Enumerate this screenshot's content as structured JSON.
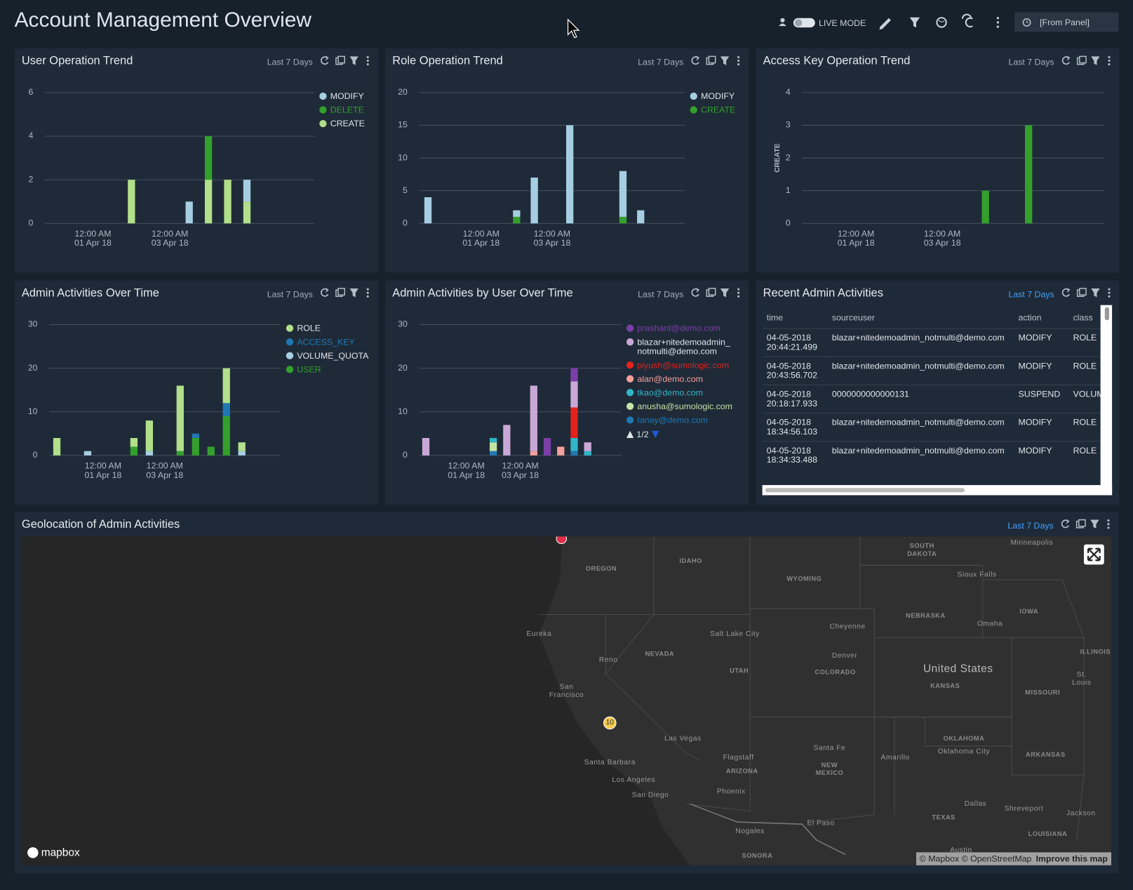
{
  "header": {
    "title": "Account Management Overview",
    "live_mode": "LIVE MODE",
    "time_range": "[From Panel]"
  },
  "panels": [
    {
      "title": "User Operation Trend",
      "range": "Last 7 Days",
      "chart": {
        "type": "bar",
        "stacked": true,
        "grid": true,
        "legend": "right",
        "categories": [
          null,
          null,
          "12:00 AM\n01 Apr 18",
          null,
          null,
          null,
          "12:00 AM\n03 Apr 18",
          null,
          null,
          null,
          null,
          null,
          null,
          null
        ],
        "series": [
          {
            "name": "MODIFY",
            "color": "#a6cee3",
            "values": [
              null,
              null,
              null,
              null,
              null,
              null,
              null,
              1,
              null,
              null,
              1,
              null,
              null,
              null
            ]
          },
          {
            "name": "DELETE",
            "color": "#33a02c",
            "values": [
              null,
              null,
              null,
              null,
              null,
              null,
              null,
              null,
              2,
              null,
              null,
              null,
              null,
              null
            ]
          },
          {
            "name": "CREATE",
            "color": "#b2df8a",
            "values": [
              null,
              null,
              null,
              null,
              2,
              null,
              null,
              null,
              2,
              2,
              1,
              null,
              null,
              null
            ]
          }
        ],
        "ylim": [
          0,
          6
        ],
        "yticks": [
          0,
          2,
          4,
          6
        ]
      }
    },
    {
      "title": "Role Operation Trend",
      "range": "Last 7 Days",
      "chart": {
        "type": "bar",
        "stacked": true,
        "grid": true,
        "legend": "right",
        "categories": [
          null,
          null,
          null,
          "12:00 AM\n01 Apr 18",
          null,
          null,
          null,
          "12:00 AM\n03 Apr 18",
          null,
          null,
          null,
          null,
          null,
          null,
          null
        ],
        "series": [
          {
            "name": "MODIFY",
            "color": "#a6cee3",
            "values": [
              4,
              null,
              null,
              null,
              null,
              1,
              7,
              null,
              15,
              null,
              null,
              7,
              2,
              null,
              null
            ]
          },
          {
            "name": "CREATE",
            "color": "#33a02c",
            "values": [
              null,
              null,
              null,
              null,
              null,
              1,
              null,
              null,
              null,
              null,
              null,
              1,
              null,
              null,
              null
            ]
          }
        ],
        "ylim": [
          0,
          20
        ],
        "yticks": [
          0,
          5,
          10,
          15,
          20
        ]
      }
    },
    {
      "title": "Access Key Operation Trend",
      "range": "Last 7 Days",
      "chart": {
        "type": "bar",
        "stacked": true,
        "grid": true,
        "y_label": "CREATE",
        "categories": [
          null,
          null,
          "12:00 AM\n01 Apr 18",
          null,
          null,
          null,
          "12:00 AM\n03 Apr 18",
          null,
          null,
          null,
          null,
          null,
          null,
          null
        ],
        "series": [
          {
            "name": "CREATE",
            "color": "#33a02c",
            "values": [
              null,
              null,
              null,
              null,
              null,
              null,
              null,
              null,
              1,
              null,
              3,
              null,
              null,
              null
            ]
          }
        ],
        "ylim": [
          0,
          4
        ],
        "yticks": [
          0,
          1,
          2,
          3,
          4
        ]
      }
    },
    {
      "title": "Admin Activities Over Time",
      "range": "Last 7 Days",
      "chart": {
        "type": "bar",
        "stacked": true,
        "grid": true,
        "legend": "right",
        "categories": [
          null,
          null,
          null,
          "12:00 AM\n01 Apr 18",
          null,
          null,
          null,
          "12:00 AM\n03 Apr 18",
          null,
          null,
          null,
          null,
          null,
          null,
          null
        ],
        "series": [
          {
            "name": "ROLE",
            "color": "#b2df8a",
            "values": [
              4,
              null,
              null,
              null,
              null,
              2,
              7,
              null,
              15,
              null,
              null,
              8,
              2,
              null,
              null
            ]
          },
          {
            "name": "ACCESS_KEY",
            "color": "#1f78b4",
            "values": [
              null,
              null,
              null,
              null,
              null,
              null,
              null,
              null,
              null,
              1,
              null,
              3,
              null,
              null,
              null
            ]
          },
          {
            "name": "VOLUME_QUOTA",
            "color": "#a6cee3",
            "values": [
              null,
              null,
              1,
              null,
              null,
              null,
              1,
              null,
              null,
              null,
              null,
              null,
              1,
              null,
              null
            ]
          },
          {
            "name": "USER",
            "color": "#33a02c",
            "values": [
              null,
              null,
              null,
              null,
              null,
              2,
              null,
              null,
              1,
              4,
              2,
              9,
              null,
              null,
              null
            ]
          }
        ],
        "ylim": [
          0,
          30
        ],
        "yticks": [
          0,
          10,
          20,
          30
        ]
      }
    },
    {
      "title": "Admin Activities by User Over Time",
      "range": "Last 7 Days",
      "chart": {
        "type": "bar",
        "stacked": true,
        "grid": true,
        "legend": "right",
        "legend_page": "1/2",
        "categories": [
          null,
          null,
          null,
          "12:00 AM\n01 Apr 18",
          null,
          null,
          null,
          "12:00 AM\n03 Apr 18",
          null,
          null,
          null,
          null,
          null,
          null,
          null
        ],
        "series": [
          {
            "name": "prashant@demo.com",
            "color": "#7b3fa8",
            "values": [
              null,
              null,
              null,
              null,
              null,
              null,
              null,
              null,
              null,
              4,
              null,
              3,
              null,
              null,
              null
            ]
          },
          {
            "name": "blazar+nitedemoadmin_notmulti@demo.com",
            "color": "#c9a8d8",
            "values": [
              4,
              null,
              null,
              null,
              null,
              null,
              7,
              null,
              15,
              null,
              null,
              6,
              2,
              null,
              null
            ]
          },
          {
            "name": "piyush@sumologic.com",
            "color": "#e3221b",
            "values": [
              null,
              null,
              null,
              null,
              null,
              null,
              null,
              null,
              null,
              null,
              null,
              7,
              null,
              null,
              null
            ]
          },
          {
            "name": "alan@demo.com",
            "color": "#f4a09a",
            "values": [
              null,
              null,
              null,
              null,
              null,
              null,
              null,
              null,
              1,
              null,
              2,
              null,
              null,
              null,
              null
            ]
          },
          {
            "name": "tkao@demo.com",
            "color": "#31b5c9",
            "values": [
              null,
              null,
              null,
              null,
              null,
              1,
              null,
              null,
              null,
              null,
              null,
              3,
              1,
              null,
              null
            ]
          },
          {
            "name": "anusha@sumologic.com",
            "color": "#c4e4a4",
            "values": [
              null,
              null,
              null,
              null,
              null,
              2,
              null,
              null,
              null,
              null,
              null,
              null,
              null,
              null,
              null
            ]
          },
          {
            "name": "tanay@demo.com",
            "color": "#1f78b4",
            "values": [
              null,
              null,
              null,
              null,
              null,
              1,
              null,
              null,
              null,
              null,
              null,
              1,
              null,
              null,
              null
            ]
          }
        ],
        "ylim": [
          0,
          30
        ],
        "yticks": [
          0,
          10,
          20,
          30
        ]
      }
    }
  ],
  "recent_admin_activities": {
    "title": "Recent Admin Activities",
    "range": "Last 7 Days",
    "columns": [
      "time",
      "sourceuser",
      "action",
      "class"
    ],
    "rows": [
      [
        "04-05-2018\n20:44:21.499",
        "blazar+nitedemoadmin_notmulti@demo.com",
        "MODIFY",
        "ROLE"
      ],
      [
        "04-05-2018\n20:43:56.702",
        "blazar+nitedemoadmin_notmulti@demo.com",
        "MODIFY",
        "ROLE"
      ],
      [
        "04-05-2018\n20:18:17.933",
        "0000000000000131",
        "SUSPEND",
        "VOLUME_QUOTA"
      ],
      [
        "04-05-2018\n18:34:56.103",
        "blazar+nitedemoadmin_notmulti@demo.com",
        "MODIFY",
        "ROLE"
      ],
      [
        "04-05-2018\n18:34:33.488",
        "blazar+nitedemoadmin_notmulti@demo.com",
        "MODIFY",
        "ROLE"
      ]
    ]
  },
  "geolocation": {
    "title": "Geolocation of Admin Activities",
    "range": "Last 7 Days",
    "marker_count": "10",
    "logo": "mapbox",
    "attribution": "© Mapbox © OpenStreetMap",
    "improve": "Improve this map",
    "labels": [
      "OREGON",
      "IDAHO",
      "WYOMING",
      "SOUTH\nDAKOTA",
      "Minneapolis",
      "Sioux Falls",
      "NEBRASKA",
      "IOWA",
      "Omaha",
      "Cheyenne",
      "Eureka",
      "Salt Lake City",
      "Denver",
      "NEVADA",
      "Reno",
      "UTAH",
      "COLORADO",
      "United States",
      "ILLINOIS",
      "KANSAS",
      "St. Louis",
      "MISSOURI",
      "San\nFrancisco",
      "Las Vegas",
      "OKLAHOMA",
      "Oklahoma City",
      "Santa Fe",
      "Flagstaff",
      "Amarillo",
      "ARKANSAS",
      "Santa Barbara",
      "NEW\nMEXICO",
      "ARIZONA",
      "Los Angeles",
      "Phoenix",
      "San Diego",
      "Dallas",
      "Shreveport",
      "Jackson",
      "TEXAS",
      "El Paso",
      "LOUISIANA",
      "Nogales",
      "SONORA",
      "Austin"
    ]
  }
}
